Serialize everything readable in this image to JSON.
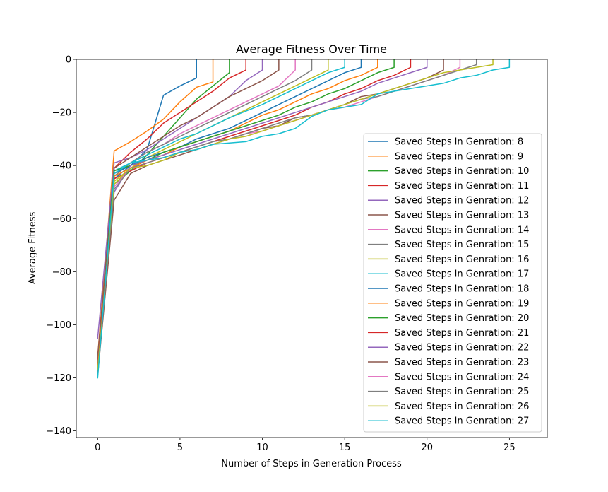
{
  "chart_data": {
    "type": "line",
    "title": "Average Fitness Over Time",
    "xlabel": "Number of Steps in Generation Process",
    "ylabel": "Average Fitness",
    "xlim": [
      -1.3,
      27.3
    ],
    "ylim": [
      -142.5,
      0
    ],
    "xticks": [
      0,
      5,
      10,
      15,
      20,
      25
    ],
    "yticks": [
      0,
      -20,
      -40,
      -60,
      -80,
      -100,
      -120,
      -140
    ],
    "grid": false,
    "legend": "lower-right",
    "colors": [
      "#1f77b4",
      "#ff7f0e",
      "#2ca02c",
      "#d62728",
      "#9467bd",
      "#8c564b",
      "#e377c2",
      "#7f7f7f",
      "#bcbd22",
      "#17becf"
    ],
    "series": [
      {
        "name": "Saved Steps in Genration: 8",
        "x": [
          0,
          1,
          2,
          3,
          4,
          5,
          6,
          6
        ],
        "y": [
          -118,
          -45,
          -40,
          -34,
          -13.5,
          -10,
          -7,
          0
        ]
      },
      {
        "name": "Saved Steps in Genration: 9",
        "x": [
          0,
          1,
          2,
          3,
          4,
          5,
          6,
          7,
          7
        ],
        "y": [
          -112,
          -34.5,
          -31,
          -27,
          -22.5,
          -16,
          -10.5,
          -8.5,
          0
        ]
      },
      {
        "name": "Saved Steps in Genration: 10",
        "x": [
          0,
          1,
          2,
          3,
          4,
          5,
          6,
          7,
          8,
          8
        ],
        "y": [
          -115,
          -47,
          -42,
          -36,
          -29,
          -22,
          -15,
          -10,
          -5,
          0
        ]
      },
      {
        "name": "Saved Steps in Genration: 11",
        "x": [
          0,
          1,
          2,
          3,
          4,
          5,
          6,
          7,
          8,
          9,
          9
        ],
        "y": [
          -113,
          -41,
          -35,
          -30,
          -24,
          -20,
          -16,
          -12,
          -7,
          -4,
          0
        ]
      },
      {
        "name": "Saved Steps in Genration: 12",
        "x": [
          0,
          1,
          2,
          3,
          4,
          5,
          6,
          7,
          8,
          9,
          10,
          10
        ],
        "y": [
          -105,
          -39,
          -37,
          -34,
          -30,
          -26,
          -22,
          -18,
          -14,
          -8,
          -4,
          0
        ]
      },
      {
        "name": "Saved Steps in Genration: 13",
        "x": [
          0,
          1,
          2,
          3,
          4,
          5,
          6,
          7,
          8,
          9,
          10,
          11,
          11
        ],
        "y": [
          -112,
          -41,
          -37,
          -33,
          -29,
          -25,
          -22,
          -18,
          -14,
          -11,
          -8,
          -4,
          0
        ]
      },
      {
        "name": "Saved Steps in Genration: 14",
        "x": [
          0,
          1,
          2,
          3,
          4,
          5,
          6,
          7,
          8,
          9,
          10,
          11,
          12,
          12
        ],
        "y": [
          -118,
          -43,
          -39,
          -35,
          -32,
          -28,
          -25,
          -22,
          -19,
          -16,
          -13,
          -10,
          -4,
          0
        ]
      },
      {
        "name": "Saved Steps in Genration: 15",
        "x": [
          0,
          1,
          2,
          3,
          4,
          5,
          6,
          7,
          8,
          9,
          10,
          11,
          12,
          13,
          13
        ],
        "y": [
          -115,
          -44,
          -39,
          -35,
          -32,
          -29,
          -26,
          -23,
          -20,
          -17,
          -14,
          -11,
          -8,
          -4,
          0
        ]
      },
      {
        "name": "Saved Steps in Genration: 16",
        "x": [
          0,
          1,
          2,
          3,
          4,
          5,
          6,
          7,
          8,
          9,
          10,
          11,
          12,
          13,
          14,
          14
        ],
        "y": [
          -117,
          -47,
          -41,
          -37,
          -34,
          -31,
          -28,
          -25,
          -22,
          -19,
          -16,
          -13,
          -10,
          -7,
          -4,
          0
        ]
      },
      {
        "name": "Saved Steps in Genration: 17",
        "x": [
          0,
          1,
          2,
          3,
          4,
          5,
          6,
          7,
          8,
          9,
          10,
          11,
          12,
          13,
          14,
          15,
          15
        ],
        "y": [
          -119,
          -42,
          -39,
          -36,
          -33,
          -30,
          -28,
          -25,
          -22,
          -19.5,
          -17,
          -14,
          -11,
          -8,
          -5,
          -3,
          0
        ]
      },
      {
        "name": "Saved Steps in Genration: 18",
        "x": [
          0,
          1,
          2,
          3,
          4,
          5,
          6,
          7,
          8,
          9,
          10,
          11,
          12,
          13,
          14,
          15,
          16,
          16
        ],
        "y": [
          -118,
          -43,
          -40,
          -37,
          -35,
          -33,
          -30,
          -28,
          -26,
          -23,
          -20,
          -17,
          -14,
          -11,
          -8,
          -5,
          -3,
          0
        ]
      },
      {
        "name": "Saved Steps in Genration: 19",
        "x": [
          0,
          1,
          2,
          3,
          4,
          5,
          6,
          7,
          8,
          9,
          10,
          11,
          12,
          13,
          14,
          15,
          16,
          17,
          17
        ],
        "y": [
          -117,
          -44,
          -41,
          -38,
          -36,
          -33,
          -31,
          -29,
          -27,
          -24,
          -21,
          -19,
          -16,
          -13,
          -11,
          -8,
          -6,
          -3,
          0
        ]
      },
      {
        "name": "Saved Steps in Genration: 20",
        "x": [
          0,
          1,
          2,
          3,
          4,
          5,
          6,
          7,
          8,
          9,
          10,
          11,
          12,
          13,
          14,
          15,
          16,
          17,
          18,
          18
        ],
        "y": [
          -118,
          -42,
          -40,
          -38,
          -35,
          -33,
          -31,
          -29,
          -27,
          -25,
          -23,
          -21,
          -18,
          -16,
          -13,
          -11,
          -8,
          -5,
          -3,
          0
        ]
      },
      {
        "name": "Saved Steps in Genration: 21",
        "x": [
          0,
          1,
          2,
          3,
          4,
          5,
          6,
          7,
          8,
          9,
          10,
          11,
          12,
          13,
          14,
          15,
          16,
          17,
          18,
          19,
          19
        ],
        "y": [
          -116,
          -45,
          -42,
          -39,
          -37,
          -35,
          -33,
          -31,
          -29,
          -27,
          -25,
          -23,
          -21,
          -18,
          -16,
          -13,
          -11,
          -8,
          -6,
          -3,
          0
        ]
      },
      {
        "name": "Saved Steps in Genration: 22",
        "x": [
          0,
          1,
          2,
          3,
          4,
          5,
          6,
          7,
          8,
          9,
          10,
          11,
          12,
          13,
          14,
          15,
          16,
          17,
          18,
          19,
          20,
          20
        ],
        "y": [
          -117,
          -50,
          -40,
          -38,
          -36,
          -34,
          -32,
          -30,
          -28,
          -26,
          -24,
          -22,
          -20,
          -18,
          -16,
          -14,
          -12,
          -9,
          -7,
          -5,
          -3,
          0
        ]
      },
      {
        "name": "Saved Steps in Genration: 23",
        "x": [
          0,
          1,
          2,
          3,
          4,
          5,
          6,
          7,
          8,
          9,
          10,
          11,
          12,
          13,
          14,
          15,
          16,
          17,
          18,
          19,
          20,
          21,
          21
        ],
        "y": [
          -119,
          -53,
          -43,
          -40,
          -38,
          -36,
          -34,
          -32,
          -30,
          -28,
          -26,
          -25,
          -22,
          -21,
          -19,
          -17,
          -14,
          -13,
          -11,
          -9,
          -7,
          -4,
          0
        ]
      },
      {
        "name": "Saved Steps in Genration: 24",
        "x": [
          0,
          1,
          2,
          3,
          4,
          5,
          6,
          7,
          8,
          9,
          10,
          11,
          12,
          13,
          14,
          15,
          16,
          17,
          18,
          19,
          20,
          21,
          22,
          22
        ],
        "y": [
          -118,
          -48,
          -41,
          -39,
          -37,
          -35,
          -34,
          -32,
          -30,
          -28,
          -27,
          -25,
          -23,
          -21,
          -19,
          -18,
          -16,
          -14,
          -12,
          -10,
          -8,
          -6,
          -3,
          0
        ]
      },
      {
        "name": "Saved Steps in Genration: 25",
        "x": [
          0,
          1,
          2,
          3,
          4,
          5,
          6,
          7,
          8,
          9,
          10,
          11,
          12,
          13,
          14,
          15,
          16,
          17,
          18,
          19,
          20,
          21,
          22,
          23,
          23
        ],
        "y": [
          -118,
          -49,
          -41,
          -39,
          -37,
          -35,
          -33,
          -31,
          -30,
          -28,
          -26,
          -24,
          -22,
          -21,
          -19,
          -17,
          -15,
          -14,
          -12,
          -10,
          -8,
          -6,
          -4,
          -2,
          0
        ]
      },
      {
        "name": "Saved Steps in Genration: 26",
        "x": [
          0,
          1,
          2,
          3,
          4,
          5,
          6,
          7,
          8,
          9,
          10,
          11,
          12,
          13,
          14,
          15,
          16,
          17,
          18,
          19,
          20,
          21,
          22,
          23,
          24,
          24
        ],
        "y": [
          -117,
          -46,
          -41,
          -40,
          -38,
          -35,
          -34,
          -32,
          -30,
          -29,
          -27,
          -25,
          -23,
          -21,
          -19,
          -17,
          -15,
          -13,
          -11,
          -9,
          -7,
          -5,
          -4,
          -3,
          -2,
          0
        ]
      },
      {
        "name": "Saved Steps in Genration: 27",
        "x": [
          0,
          1,
          2,
          3,
          4,
          5,
          6,
          7,
          8,
          9,
          10,
          11,
          12,
          13,
          14,
          15,
          16,
          17,
          18,
          19,
          20,
          21,
          22,
          23,
          24,
          25,
          25
        ],
        "y": [
          -120,
          -43,
          -39,
          -38,
          -37,
          -35,
          -34,
          -32,
          -31.5,
          -31,
          -29,
          -28,
          -26,
          -21.5,
          -19,
          -18,
          -17,
          -13,
          -12,
          -11,
          -10,
          -9,
          -7,
          -6,
          -4,
          -3,
          0
        ]
      }
    ]
  }
}
